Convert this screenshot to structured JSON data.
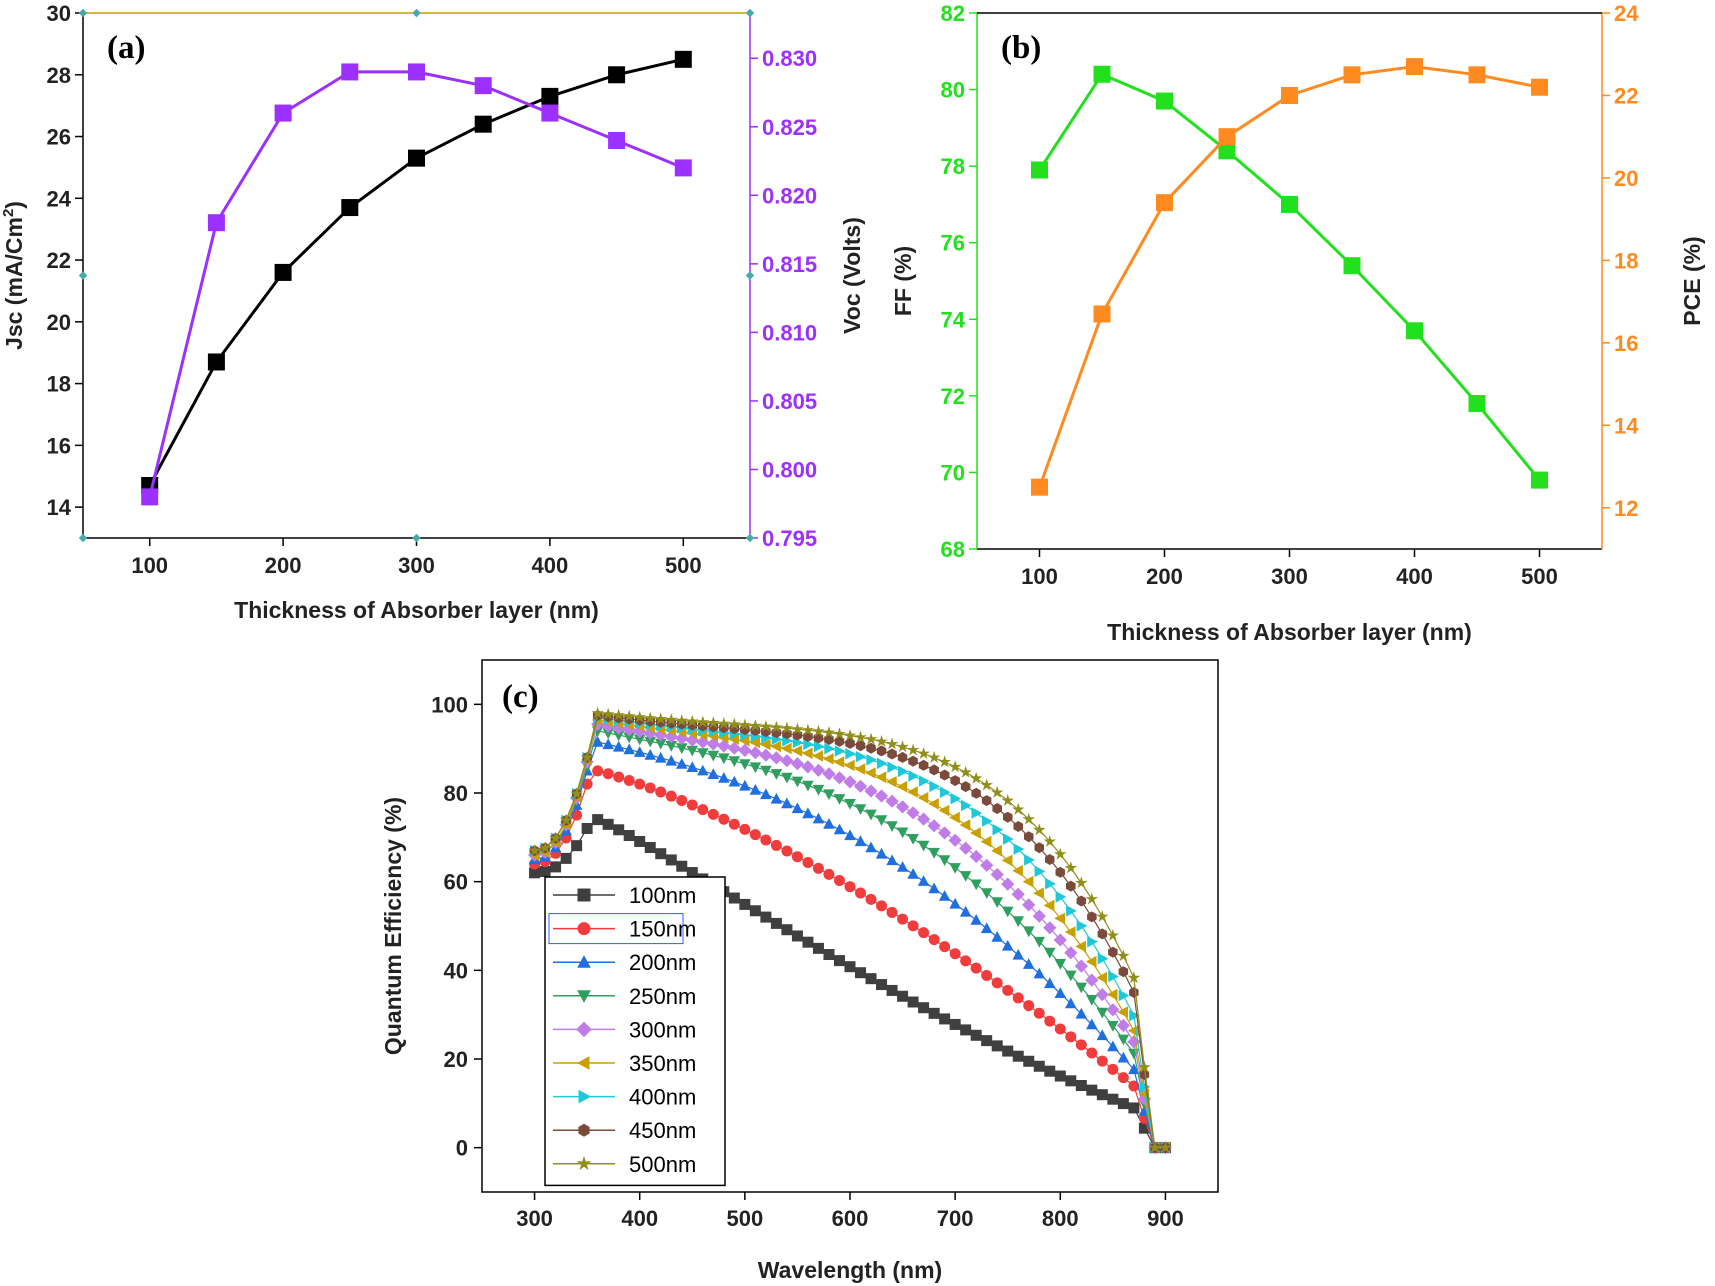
{
  "colors": {
    "jsc": "#000000",
    "voc": "#9b30ff",
    "ff": "#22e01e",
    "pce": "#ff8a1f",
    "qe": [
      "#3f3f3f",
      "#f03c3c",
      "#1f6fe0",
      "#2e9f5e",
      "#c07de8",
      "#c8a000",
      "#1fc8d8",
      "#7a4a3a",
      "#8f8f1a"
    ]
  },
  "chart_data": [
    {
      "type": "line",
      "panel_label": "(a)",
      "xlabel": "Thickness of Absorber layer (nm)",
      "x": [
        100,
        150,
        200,
        250,
        300,
        350,
        400,
        450,
        500
      ],
      "xlim": [
        50,
        550
      ],
      "xticks": [
        100,
        200,
        300,
        400,
        500
      ],
      "left_axis": {
        "label": "Jsc (mA/Cm",
        "label_sup": "2",
        "label_end": ")",
        "ylim": [
          13,
          30
        ],
        "ticks": [
          14,
          16,
          18,
          20,
          22,
          24,
          26,
          28,
          30
        ],
        "tick_labels": [
          "14",
          "16",
          "18",
          "20",
          "22",
          "24",
          "26",
          "28",
          "30"
        ]
      },
      "right_axis": {
        "label": "Voc (Volts)",
        "ylim": [
          0.795,
          0.8333
        ],
        "ticks": [
          0.795,
          0.8,
          0.805,
          0.81,
          0.815,
          0.82,
          0.825,
          0.83
        ],
        "tick_labels": [
          "0.795",
          "0.800",
          "0.805",
          "0.810",
          "0.815",
          "0.820",
          "0.825",
          "0.830"
        ]
      },
      "series": [
        {
          "axis": "left",
          "color_key": "jsc",
          "values": [
            14.7,
            18.7,
            21.6,
            23.7,
            25.3,
            26.4,
            27.3,
            28.0,
            28.5
          ]
        },
        {
          "axis": "right",
          "color_key": "voc",
          "values": [
            0.798,
            0.818,
            0.826,
            0.829,
            0.829,
            0.828,
            0.826,
            0.824,
            0.822
          ]
        }
      ]
    },
    {
      "type": "line",
      "panel_label": "(b)",
      "xlabel": "Thickness of Absorber layer (nm)",
      "x": [
        100,
        150,
        200,
        250,
        300,
        350,
        400,
        450,
        500
      ],
      "xlim": [
        50,
        550
      ],
      "xticks": [
        100,
        200,
        300,
        400,
        500
      ],
      "left_axis": {
        "label": "FF (%)",
        "ylim": [
          68,
          82
        ],
        "ticks": [
          68,
          70,
          72,
          74,
          76,
          78,
          80,
          82
        ],
        "tick_labels": [
          "68",
          "70",
          "72",
          "74",
          "76",
          "78",
          "80",
          "82"
        ]
      },
      "right_axis": {
        "label": "PCE (%)",
        "ylim": [
          11,
          24
        ],
        "ticks": [
          12,
          14,
          16,
          18,
          20,
          22,
          24
        ],
        "tick_labels": [
          "12",
          "14",
          "16",
          "18",
          "20",
          "22",
          "24"
        ]
      },
      "series": [
        {
          "axis": "left",
          "color_key": "ff",
          "values": [
            77.9,
            80.4,
            79.7,
            78.4,
            77.0,
            75.4,
            73.7,
            71.8,
            69.8
          ]
        },
        {
          "axis": "right",
          "color_key": "pce",
          "values": [
            12.5,
            16.7,
            19.4,
            21.0,
            22.0,
            22.5,
            22.7,
            22.5,
            22.2
          ]
        }
      ]
    },
    {
      "type": "line",
      "panel_label": "(c)",
      "xlabel": "Wavelength (nm)",
      "ylabel": "Quantum Efficiency (%)",
      "xlim": [
        250,
        950
      ],
      "ylim": [
        -10,
        110
      ],
      "xticks": [
        300,
        400,
        500,
        600,
        700,
        800,
        900
      ],
      "yticks": [
        0,
        20,
        40,
        60,
        80,
        100
      ],
      "x_start": 300,
      "x_step": 10,
      "x_end": 900,
      "series": [
        {
          "name": "100nm",
          "marker": "square",
          "peak": 74.0,
          "end": 8.0,
          "gamma": 1.3,
          "b": 5.0,
          "p": 3.5,
          "edge": 62.0,
          "rise": 72.0
        },
        {
          "name": "150nm",
          "marker": "circle",
          "peak": 85.0,
          "end": 12.0,
          "gamma": 1.8,
          "b": 4.0,
          "p": 4.0,
          "edge": 64.0,
          "rise": 82.0
        },
        {
          "name": "200nm",
          "marker": "triangle",
          "peak": 91.5,
          "end": 15.0,
          "gamma": 2.2,
          "b": 3.4,
          "p": 4.5,
          "edge": 65.0,
          "rise": 85.0
        },
        {
          "name": "250nm",
          "marker": "tri-down",
          "peak": 94.0,
          "end": 18.0,
          "gamma": 2.6,
          "b": 3.0,
          "p": 5.0,
          "edge": 66.0,
          "rise": 86.0
        },
        {
          "name": "300nm",
          "marker": "diamond",
          "peak": 95.5,
          "end": 20.0,
          "gamma": 3.0,
          "b": 2.7,
          "p": 5.5,
          "edge": 66.0,
          "rise": 87.0
        },
        {
          "name": "350nm",
          "marker": "tri-left",
          "peak": 96.5,
          "end": 22.0,
          "gamma": 3.4,
          "b": 2.4,
          "p": 6.0,
          "edge": 66.0,
          "rise": 87.5
        },
        {
          "name": "400nm",
          "marker": "tri-right",
          "peak": 97.0,
          "end": 25.0,
          "gamma": 3.8,
          "b": 2.2,
          "p": 6.5,
          "edge": 67.0,
          "rise": 88.0
        },
        {
          "name": "450nm",
          "marker": "hexagon",
          "peak": 97.5,
          "end": 30.0,
          "gamma": 4.2,
          "b": 2.0,
          "p": 7.0,
          "edge": 67.0,
          "rise": 88.0
        },
        {
          "name": "500nm",
          "marker": "star",
          "peak": 98.0,
          "end": 33.0,
          "gamma": 4.6,
          "b": 1.8,
          "p": 7.5,
          "edge": 67.0,
          "rise": 88.0
        }
      ]
    }
  ]
}
